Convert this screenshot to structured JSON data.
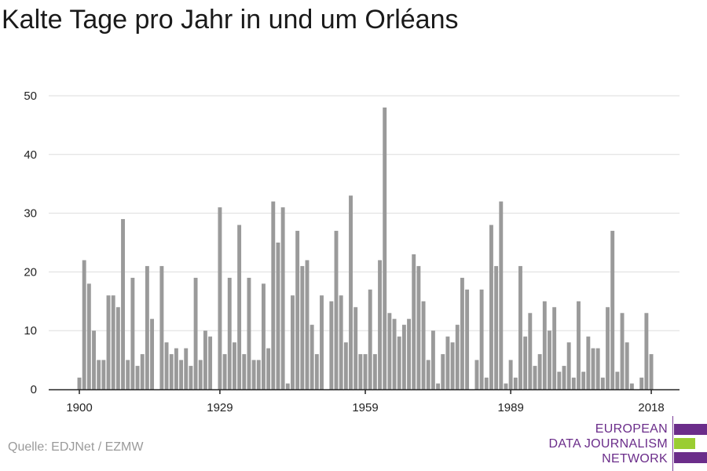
{
  "title": "Kalte Tage pro Jahr in und um Orléans",
  "source": "Quelle: EDJNet / EZMW",
  "logo": {
    "lines": [
      "EUROPEAN",
      "DATA JOURNALISM",
      "NETWORK"
    ],
    "colors": [
      "#6b2d8a",
      "#9acd32",
      "#6b2d8a"
    ]
  },
  "chart_data": {
    "type": "bar",
    "title": "Kalte Tage pro Jahr in und um Orléans",
    "xlabel": "",
    "ylabel": "",
    "x_tick_labels": [
      "1900",
      "1929",
      "1959",
      "1989",
      "2018"
    ],
    "y_ticks": [
      0,
      10,
      20,
      30,
      40,
      50
    ],
    "ylim": [
      0,
      50
    ],
    "xlim": [
      1900,
      2018
    ],
    "bar_color": "#9a9a9a",
    "grid": true,
    "x": [
      1900,
      1901,
      1902,
      1903,
      1904,
      1905,
      1906,
      1907,
      1908,
      1909,
      1910,
      1911,
      1912,
      1913,
      1914,
      1915,
      1916,
      1917,
      1918,
      1919,
      1920,
      1921,
      1922,
      1923,
      1924,
      1925,
      1926,
      1927,
      1928,
      1929,
      1930,
      1931,
      1932,
      1933,
      1934,
      1935,
      1936,
      1937,
      1938,
      1939,
      1940,
      1941,
      1942,
      1943,
      1944,
      1945,
      1946,
      1947,
      1948,
      1949,
      1950,
      1951,
      1952,
      1953,
      1954,
      1955,
      1956,
      1957,
      1958,
      1959,
      1960,
      1961,
      1962,
      1963,
      1964,
      1965,
      1966,
      1967,
      1968,
      1969,
      1970,
      1971,
      1972,
      1973,
      1974,
      1975,
      1976,
      1977,
      1978,
      1979,
      1980,
      1981,
      1982,
      1983,
      1984,
      1985,
      1986,
      1987,
      1988,
      1989,
      1990,
      1991,
      1992,
      1993,
      1994,
      1995,
      1996,
      1997,
      1998,
      1999,
      2000,
      2001,
      2002,
      2003,
      2004,
      2005,
      2006,
      2007,
      2008,
      2009,
      2010,
      2011,
      2012,
      2013,
      2014,
      2015,
      2016,
      2017,
      2018
    ],
    "values": [
      2,
      22,
      18,
      10,
      5,
      5,
      16,
      16,
      14,
      29,
      5,
      19,
      4,
      6,
      21,
      12,
      0,
      21,
      8,
      6,
      7,
      5,
      7,
      4,
      19,
      5,
      10,
      9,
      0,
      31,
      6,
      19,
      8,
      28,
      6,
      19,
      5,
      5,
      18,
      7,
      32,
      25,
      31,
      1,
      16,
      27,
      21,
      22,
      11,
      6,
      16,
      0,
      15,
      27,
      16,
      8,
      33,
      14,
      6,
      6,
      17,
      6,
      22,
      48,
      13,
      12,
      9,
      11,
      12,
      23,
      21,
      15,
      5,
      10,
      1,
      6,
      9,
      8,
      11,
      19,
      17,
      0,
      5,
      17,
      2,
      28,
      21,
      32,
      1,
      5,
      2,
      21,
      9,
      13,
      4,
      6,
      15,
      10,
      14,
      3,
      4,
      8,
      2,
      15,
      3,
      9,
      7,
      7,
      2,
      14,
      27,
      3,
      13,
      8,
      1,
      0,
      2,
      13,
      6
    ]
  }
}
